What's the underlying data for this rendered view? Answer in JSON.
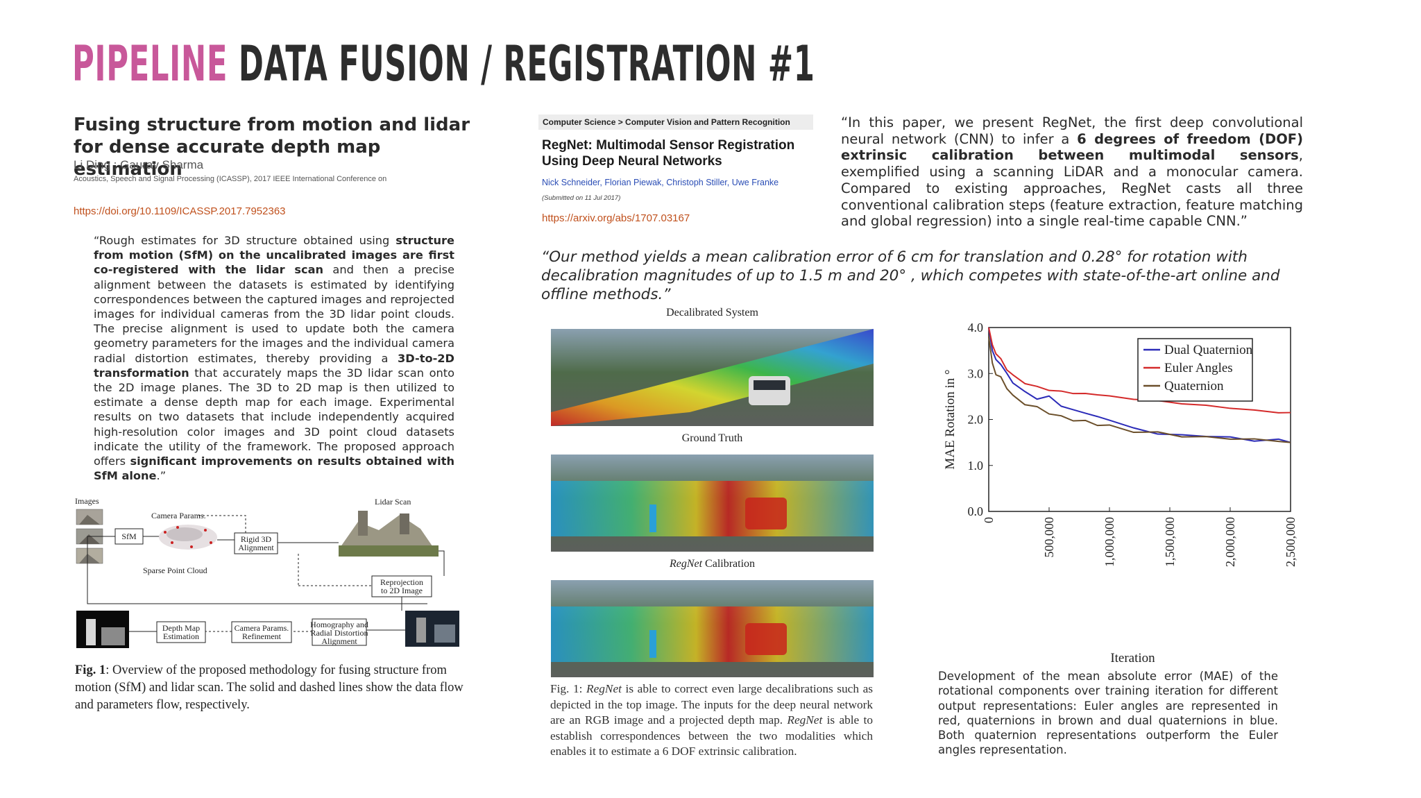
{
  "header": {
    "title_accent": "PIPELINE",
    "title_rest": "DATA FUSION / REGISTRATION #1"
  },
  "paper1": {
    "title": "Fusing structure from motion and lidar for dense accurate depth map estimation",
    "authors": "Li Ding ;  Gaurav Sharma",
    "venue": "Acoustics, Speech and Signal Processing (ICASSP), 2017 IEEE International Conference on",
    "doi": "https://doi.org/10.1109/ICASSP.2017.7952363",
    "abstract": [
      {
        "t": "“Rough estimates for 3D structure obtained using ",
        "b": false
      },
      {
        "t": "structure from motion (SfM) on the uncalibrated images are first co-registered with the lidar scan",
        "b": true
      },
      {
        "t": " and then a precise alignment between the datasets is estimated by identifying correspondences between the captured images and reprojected images for individual cameras from the 3D lidar point clouds. The precise alignment is used to update both the camera geometry parameters for the images and the individual camera radial distortion estimates, thereby providing a ",
        "b": false
      },
      {
        "t": "3D-to-2D transformation",
        "b": true
      },
      {
        "t": " that accurately maps the 3D lidar scan onto the 2D image planes. The 3D to 2D map is then utilized to estimate a dense depth map for each image. Experimental results on two datasets that include independently acquired high-resolution color images and 3D point cloud datasets indicate the utility of the framework. The proposed approach offers ",
        "b": false
      },
      {
        "t": "significant improvements on results obtained with SfM alone",
        "b": true
      },
      {
        "t": ".”",
        "b": false
      }
    ],
    "diagram": {
      "images": "Images",
      "sfm": "SfM",
      "camera_params": "Camera Params.",
      "rigid1": "Rigid 3D",
      "rigid2": "Alignment",
      "lidar_scan": "Lidar Scan",
      "sparse_cloud": "Sparse Point Cloud",
      "reproj1": "Reprojection",
      "reproj2": "to 2D Image",
      "depth1": "Depth Map",
      "depth2": "Estimation",
      "refine1": "Camera Params.",
      "refine2": "Refinement",
      "homog1": "Homography and",
      "homog2": "Radial Distortion",
      "homog3": "Alignment"
    },
    "caption_label": "Fig. 1",
    "caption_text": ": Overview of the proposed methodology for fusing structure from motion (SfM) and lidar scan. The solid and dashed lines show the data flow and parameters flow, respectively."
  },
  "paper2": {
    "category": "Computer Science > Computer Vision and Pattern Recognition",
    "title": "RegNet: Multimodal Sensor Registration Using Deep Neural Networks",
    "authors": "Nick Schneider, Florian Piewak, Christoph Stiller, Uwe Franke",
    "submitted": "(Submitted on 11 Jul 2017)",
    "url": "https://arxiv.org/abs/1707.03167",
    "quote": [
      {
        "t": "“In this paper, we present RegNet, the first deep convolutional neural network (CNN) to infer a ",
        "b": false
      },
      {
        "t": "6 degrees of freedom (DOF) extrinsic calibration between multimodal sensors",
        "b": true
      },
      {
        "t": ", exemplified using a scanning LiDAR and a monocular camera. Compared to existing approaches, RegNet casts all three conventional calibration steps (feature extraction, feature matching and global regression) into a single real-time capable CNN.”",
        "b": false
      }
    ],
    "calibration_quote": "“Our method yields a mean calibration error of 6 cm for translation and 0.28° for rotation with decalibration magnitudes of up to 1.5 m and 20° , which competes with state-of-the-art online and offline methods.”",
    "panels": {
      "decalibrated": "Decalibrated System",
      "ground_truth": "Ground Truth",
      "regnet_italic": "RegNet",
      "regnet_rest": " Calibration"
    },
    "fig_caption": [
      {
        "t": "Fig. 1: ",
        "i": false
      },
      {
        "t": "RegNet",
        "i": true
      },
      {
        "t": " is able to correct even large decalibrations such as depicted in the top image. The inputs for the deep neural network are an RGB image and a projected depth map. ",
        "i": false
      },
      {
        "t": "RegNet",
        "i": true
      },
      {
        "t": " is able to establish correspondences between the two modalities which enables it to estimate a 6 DOF extrinsic calibration.",
        "i": false
      }
    ]
  },
  "chart_data": {
    "type": "line",
    "xlabel": "Iteration",
    "ylabel": "MAE Rotation in °",
    "xlim": [
      0,
      2500000
    ],
    "ylim": [
      0,
      4.0
    ],
    "xticks": [
      "0",
      "500,000",
      "1,000,000",
      "1,500,000",
      "2,000,000",
      "2,500,000"
    ],
    "yticks": [
      "0.0",
      "1.0",
      "2.0",
      "3.0",
      "4.0"
    ],
    "legend_position": "top-right",
    "grid": false,
    "series": [
      {
        "name": "Dual Quaternion",
        "color": "#2b2bb8",
        "x": [
          0,
          30000,
          60000,
          100000,
          150000,
          200000,
          300000,
          400000,
          500000,
          600000,
          700000,
          800000,
          900000,
          1000000,
          1200000,
          1400000,
          1600000,
          1800000,
          2000000,
          2200000,
          2400000,
          2500000
        ],
        "y": [
          4.0,
          3.5,
          3.3,
          3.2,
          3.0,
          2.8,
          2.6,
          2.45,
          2.5,
          2.3,
          2.2,
          2.15,
          2.05,
          2.0,
          1.8,
          1.7,
          1.65,
          1.65,
          1.6,
          1.55,
          1.55,
          1.5
        ]
      },
      {
        "name": "Euler Angles",
        "color": "#d42a2a",
        "x": [
          0,
          30000,
          60000,
          100000,
          150000,
          200000,
          300000,
          400000,
          500000,
          600000,
          700000,
          800000,
          900000,
          1000000,
          1200000,
          1400000,
          1600000,
          1800000,
          2000000,
          2200000,
          2400000,
          2500000
        ],
        "y": [
          4.0,
          3.6,
          3.45,
          3.3,
          3.1,
          2.95,
          2.8,
          2.7,
          2.65,
          2.6,
          2.58,
          2.55,
          2.55,
          2.5,
          2.45,
          2.4,
          2.35,
          2.3,
          2.25,
          2.2,
          2.15,
          2.15
        ]
      },
      {
        "name": "Quaternion",
        "color": "#6b4f2a",
        "x": [
          0,
          30000,
          60000,
          100000,
          150000,
          200000,
          300000,
          400000,
          500000,
          600000,
          700000,
          800000,
          900000,
          1000000,
          1200000,
          1400000,
          1600000,
          1800000,
          2000000,
          2200000,
          2400000,
          2500000
        ],
        "y": [
          3.8,
          3.2,
          3.0,
          2.9,
          2.7,
          2.5,
          2.35,
          2.25,
          2.15,
          2.05,
          2.0,
          1.95,
          1.9,
          1.85,
          1.75,
          1.7,
          1.65,
          1.6,
          1.6,
          1.55,
          1.55,
          1.5
        ]
      }
    ],
    "caption": "Development of the mean absolute error (MAE) of the rotational components over training iteration for different output representations: Euler angles are represented in red, quaternions in brown and dual quaternions in blue. Both quaternion representations outperform the Euler angles representation."
  }
}
